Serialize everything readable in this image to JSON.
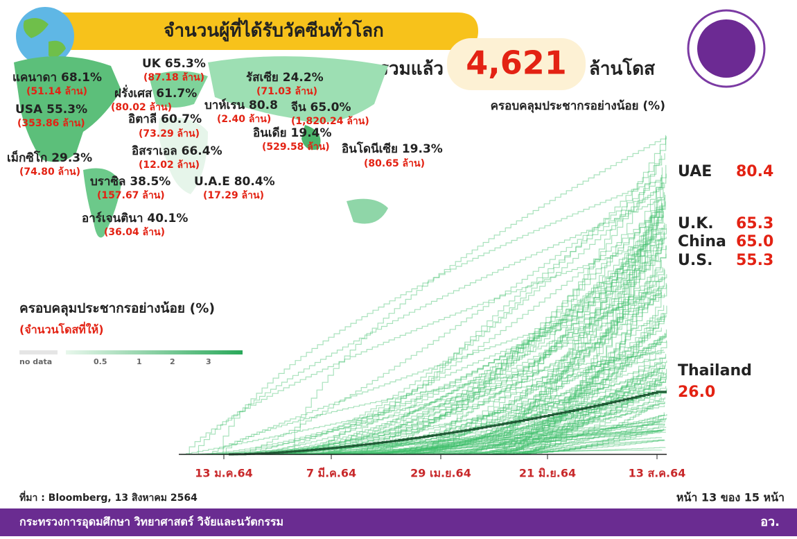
{
  "header": {
    "title": "จำนวนผู้ที่ได้รับวัคซีนทั่วโลก",
    "total_prefix": "รวมแล้ว",
    "total": "4,621",
    "total_unit": "ล้านโดส"
  },
  "map": {
    "labels": [
      {
        "name": "UK 65.3%",
        "doses": "(87.18 ล้าน)"
      },
      {
        "name": "แคนาดา 68.1%",
        "doses": "(51.14 ล้าน)"
      },
      {
        "name": "รัสเซีย 24.2%",
        "doses": "(71.03 ล้าน)"
      },
      {
        "name": "ฝรั่งเศส 61.7%",
        "doses": "(80.02 ล้าน)"
      },
      {
        "name": "USA 55.3%",
        "doses": "(353.86 ล้าน)"
      },
      {
        "name": "บาห์เรน 80.8",
        "doses": "(2.40 ล้าน)"
      },
      {
        "name": "จีน 65.0%",
        "doses": "(1,820.24 ล้าน)"
      },
      {
        "name": "อิตาลี 60.7%",
        "doses": "(73.29 ล้าน)"
      },
      {
        "name": "อินเดีย 19.4%",
        "doses": "(529.58 ล้าน)"
      },
      {
        "name": "อิสราเอล 66.4%",
        "doses": "(12.02 ล้าน)"
      },
      {
        "name": "อินโดนีเซีย 19.3%",
        "doses": "(80.65 ล้าน)"
      },
      {
        "name": "เม็กซิโก 29.3%",
        "doses": "(74.80 ล้าน)"
      },
      {
        "name": "บราซิล 38.5%",
        "doses": "(157.67 ล้าน)"
      },
      {
        "name": "U.A.E 80.4%",
        "doses": "(17.29 ล้าน)"
      },
      {
        "name": "อาร์เจนตินา 40.1%",
        "doses": "(36.04 ล้าน)"
      }
    ]
  },
  "legend": {
    "title": "ครอบคลุมประชากรอย่างน้อย (%)",
    "subtitle": "(จำนวนโดสที่ให้)",
    "scale": [
      "no data",
      "0.5",
      "1",
      "2",
      "3"
    ]
  },
  "chart": {
    "title": "ครอบคลุมประชากรอย่างน้อย (%)",
    "highlights": [
      {
        "name": "UAE",
        "value": "80.4"
      },
      {
        "name": "U.K.",
        "value": "65.3"
      },
      {
        "name": "China",
        "value": "65.0"
      },
      {
        "name": "U.S.",
        "value": "55.3"
      },
      {
        "name": "Thailand",
        "value": "26.0"
      }
    ],
    "x_labels": [
      "13 ม.ค.64",
      "7 มี.ค.64",
      "29 เม.ย.64",
      "21 มิ.ย.64",
      "13 ส.ค.64"
    ]
  },
  "footer": {
    "source": "ที่มา : Bloomberg, 13 สิงหาคม 2564",
    "page": "หน้า 13 ของ 15 หน้า",
    "ministry": "กระทรวงการอุดมศึกษา วิทยาศาสตร์ วิจัยและนวัตกรรม",
    "abbr": "อว."
  }
}
